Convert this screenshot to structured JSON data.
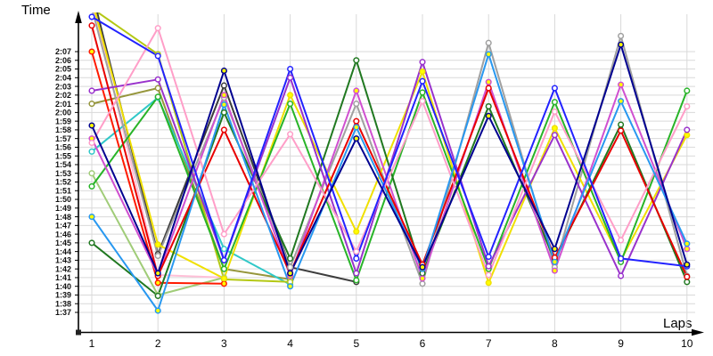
{
  "chart_data": {
    "type": "line",
    "title": "",
    "ylabel": "Time",
    "xlabel": "Laps",
    "units": "lap time, m:ss (values stored as seconds)",
    "grid": true,
    "legend_position": "none",
    "x": [
      1,
      2,
      3,
      4,
      5,
      6,
      7,
      8,
      9,
      10
    ],
    "x_tick_labels": [
      "1",
      "2",
      "3",
      "4",
      "5",
      "6",
      "7",
      "8",
      "9",
      "10"
    ],
    "y_tick_labels": [
      "2:07",
      "2:06",
      "2:05",
      "2:04",
      "2:03",
      "2:02",
      "2:01",
      "2:00",
      "1:59",
      "1:58",
      "1:57",
      "1:56",
      "1:55",
      "1:54",
      "1:53",
      "1:52",
      "1:51",
      "1:50",
      "1:49",
      "1:48",
      "1:47",
      "1:46",
      "1:45",
      "1:44",
      "1:43",
      "1:42",
      "1:41",
      "1:40",
      "1:39",
      "1:38",
      "1:37"
    ],
    "y_range_seconds": [
      97,
      127
    ],
    "colors": {
      "background": "#ffffff",
      "gridline": "#d9d9d9",
      "axis": "#000000",
      "tick_text": "#111111",
      "yellow_marker_fill": "#ffff00",
      "white_marker_fill": "#ffffff"
    },
    "series": [
      {
        "name": "lightpink",
        "color": "#ffc0d8",
        "marker_fill": "#ffffff",
        "values": [
          133,
          101.3,
          101,
          null,
          null,
          null,
          null,
          null,
          null,
          null
        ]
      },
      {
        "name": "palegreen",
        "color": "#a0cc78",
        "marker_fill": "#ffffff",
        "values": [
          113,
          99,
          101,
          null,
          null,
          null,
          null,
          null,
          null,
          null
        ]
      },
      {
        "name": "khaki",
        "color": "#96963c",
        "marker_fill": "#ffffff",
        "values": [
          121,
          122.8,
          102,
          100.8,
          null,
          null,
          null,
          null,
          null,
          null
        ]
      },
      {
        "name": "cyan",
        "color": "#30c8c8",
        "marker_fill": "#ffffff",
        "values": [
          115.5,
          121.7,
          104.3,
          100.2,
          null,
          null,
          null,
          null,
          null,
          null
        ]
      },
      {
        "name": "yellowgreen",
        "color": "#b4c814",
        "marker_fill": "#ffffff",
        "values": [
          132,
          126.7,
          100.8,
          100.5,
          null,
          null,
          null,
          null,
          null,
          null
        ]
      },
      {
        "name": "black",
        "color": "#3c3c3c",
        "marker_fill": "#ffffff",
        "values": [
          134,
          103.7,
          123.1,
          102.2,
          100.5,
          null,
          null,
          null,
          null,
          null
        ]
      },
      {
        "name": "gray",
        "color": "#a0a0a0",
        "marker_fill": "#ffffff",
        "values": [
          132,
          103.5,
          121.7,
          102.2,
          121,
          100.3,
          128,
          102.2,
          128.8,
          101.2
        ]
      },
      {
        "name": "red2",
        "color": "#ff1a00",
        "marker_fill": "#ffff00",
        "values": [
          127,
          100.4,
          100.3,
          null,
          null,
          null,
          null,
          null,
          null,
          null
        ]
      },
      {
        "name": "yellow",
        "color": "#f0e000",
        "marker_fill": "#ffff00",
        "values": [
          133,
          104.8,
          100.9,
          122,
          106.3,
          124.7,
          100.4,
          118.2,
          103,
          117.4
        ]
      },
      {
        "name": "lime",
        "color": "#28b428",
        "marker_fill": "#ffffff",
        "values": [
          111.5,
          121.8,
          102,
          121,
          100.7,
          122.3,
          102,
          121.2,
          102.8,
          122.5
        ]
      },
      {
        "name": "forest",
        "color": "#207820",
        "marker_fill": "#ffffff",
        "values": [
          105,
          98.9,
          120,
          103.2,
          126,
          101.5,
          120.7,
          103,
          118.6,
          100.5
        ]
      },
      {
        "name": "magenta",
        "color": "#d050d0",
        "marker_fill": "#ffff00",
        "values": [
          117,
          101.3,
          122,
          101.2,
          122.5,
          100.9,
          123.5,
          101.8,
          123.2,
          104.3
        ]
      },
      {
        "name": "purple",
        "color": "#9932cc",
        "marker_fill": "#ffffff",
        "values": [
          122.5,
          123.8,
          103,
          124,
          101.5,
          125.8,
          102.3,
          117.4,
          101.2,
          118
        ]
      },
      {
        "name": "red",
        "color": "#e80000",
        "marker_fill": "#ffffff",
        "values": [
          130,
          101.2,
          118,
          101.5,
          119,
          102.5,
          122.8,
          103.3,
          117.9,
          101.1
        ]
      },
      {
        "name": "pink",
        "color": "#ff9ec8",
        "marker_fill": "#ffffff",
        "values": [
          116.5,
          129.7,
          106,
          117.5,
          104,
          121.3,
          101.3,
          120.1,
          105.3,
          120.7
        ]
      },
      {
        "name": "dodger",
        "color": "#2898f0",
        "marker_fill": "#ffff00",
        "values": [
          108,
          97.2,
          120.9,
          100,
          118.3,
          102,
          126.7,
          102.8,
          121.3,
          104.9
        ]
      },
      {
        "name": "blue",
        "color": "#2222ff",
        "marker_fill": "#ffffff",
        "values": [
          131,
          126.5,
          103,
          125,
          103.2,
          123.6,
          103.4,
          122.8,
          103.2,
          102.3
        ]
      },
      {
        "name": "navy",
        "color": "#000090",
        "marker_fill": "#ffff00",
        "values": [
          118.5,
          101.5,
          124.8,
          101.5,
          117,
          102.2,
          119.6,
          104.3,
          127.8,
          102.5
        ]
      }
    ]
  }
}
